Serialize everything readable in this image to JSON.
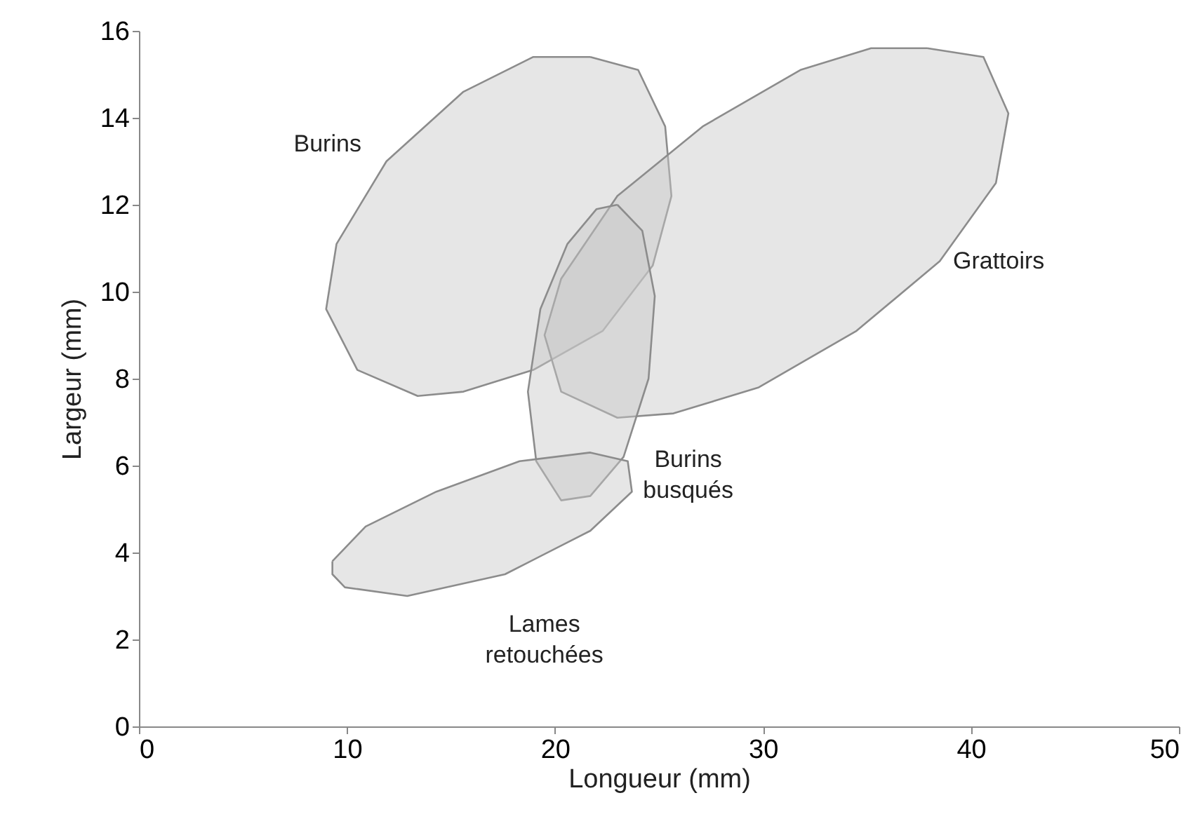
{
  "chart_data": {
    "type": "area",
    "xlabel": "Longueur (mm)",
    "ylabel": "Largeur (mm)",
    "xlim": [
      0,
      50
    ],
    "ylim": [
      0,
      16
    ],
    "xticks": [
      0,
      10,
      20,
      30,
      40,
      50
    ],
    "yticks": [
      0,
      2,
      4,
      6,
      8,
      10,
      12,
      14,
      16
    ],
    "grid": false,
    "legend": false,
    "series": [
      {
        "name": "Burins",
        "color": "#8c8c8c",
        "x": [
          21.7,
          24.0,
          25.3,
          25.6,
          24.7,
          22.3,
          18.96,
          15.6,
          13.4,
          10.5,
          9.0,
          9.5,
          11.9,
          15.6,
          18.96,
          21.7
        ],
        "values": [
          15.4,
          15.1,
          13.8,
          12.2,
          10.6,
          9.1,
          8.2,
          7.7,
          7.6,
          8.2,
          9.6,
          11.1,
          13.0,
          14.6,
          15.4,
          15.4
        ]
      },
      {
        "name": "Grattoirs",
        "color": "#8c8c8c",
        "x": [
          37.9,
          40.6,
          41.8,
          41.2,
          38.5,
          34.5,
          29.8,
          25.7,
          23.0,
          20.3,
          19.5,
          20.3,
          23.0,
          27.1,
          31.8,
          35.2,
          37.9
        ],
        "values": [
          15.6,
          15.4,
          14.1,
          12.5,
          10.7,
          9.1,
          7.8,
          7.2,
          7.1,
          7.7,
          9.0,
          10.3,
          12.2,
          13.8,
          15.1,
          15.6,
          15.6
        ]
      },
      {
        "name": "Burins\nbusqués",
        "color": "#8c8c8c",
        "x": [
          23.0,
          24.2,
          24.8,
          24.5,
          23.3,
          21.7,
          20.3,
          19.1,
          18.7,
          19.3,
          20.6,
          22.0,
          23.0
        ],
        "values": [
          12.0,
          11.4,
          9.9,
          8.0,
          6.2,
          5.3,
          5.2,
          6.1,
          7.7,
          9.6,
          11.1,
          11.9,
          12.0
        ]
      },
      {
        "name": "Lames\nretouchées",
        "color": "#8c8c8c",
        "x": [
          9.3,
          10.9,
          14.3,
          18.3,
          21.7,
          23.5,
          23.7,
          21.7,
          17.6,
          12.9,
          9.9,
          9.3,
          9.3
        ],
        "values": [
          3.8,
          4.6,
          5.4,
          6.1,
          6.3,
          6.1,
          5.4,
          4.5,
          3.5,
          3.0,
          3.2,
          3.5,
          3.8
        ]
      }
    ]
  }
}
